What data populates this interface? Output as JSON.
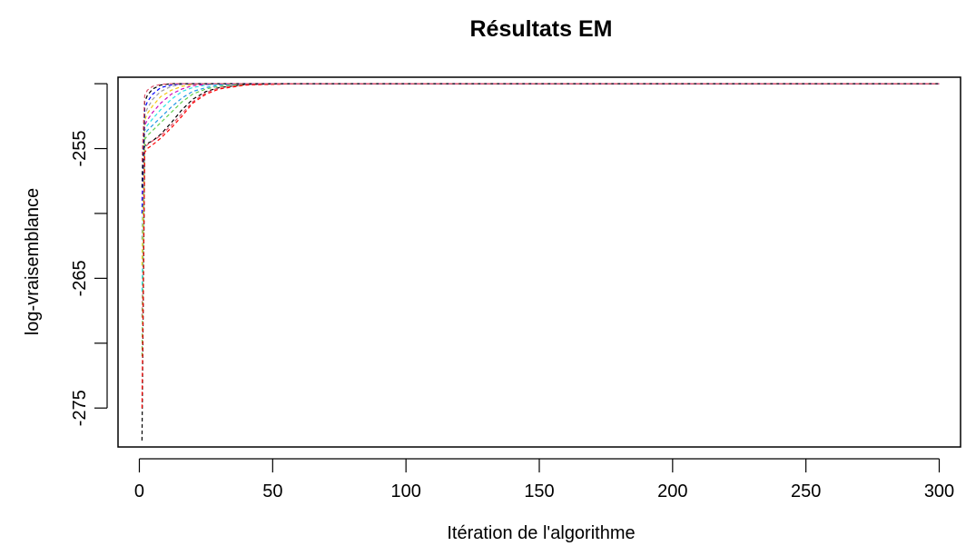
{
  "chart_data": {
    "type": "line",
    "title": "Résultats EM",
    "xlabel": "Itération de l'algorithme",
    "ylabel": "log-vraisemblance",
    "xlim": [
      -8,
      308
    ],
    "ylim": [
      -278,
      -249.5
    ],
    "xticks": [
      0,
      50,
      100,
      150,
      200,
      250,
      300
    ],
    "yticks": [
      -275,
      -265,
      -255
    ],
    "ytick_labels_shown": [
      "-255",
      "-265",
      "-275"
    ],
    "grid": false,
    "legend": "none",
    "line_style": "dashed",
    "palette": [
      "#000000",
      "#df536b",
      "#61d04f",
      "#2297e6",
      "#28e2e5",
      "#cd0bbc",
      "#f5c710",
      "#9e9e9e",
      "#0000ff",
      "#ff0000"
    ],
    "series": [
      {
        "x": [
          1,
          2,
          3,
          5,
          8,
          12,
          16,
          20,
          25,
          30,
          40,
          60,
          100,
          150,
          200,
          250,
          300
        ],
        "values": [
          -277.5,
          -254.8,
          -254.6,
          -254.4,
          -253.9,
          -253.0,
          -252.0,
          -251.2,
          -250.6,
          -250.3,
          -250.05,
          -250.0,
          -250.0,
          -250.0,
          -250.0,
          -250.0,
          -250.0
        ]
      },
      {
        "x": [
          1,
          2,
          3,
          5,
          8,
          12,
          16,
          20,
          25,
          30,
          40,
          60,
          100,
          150,
          200,
          250,
          300
        ],
        "values": [
          -268.0,
          -255.0,
          -254.7,
          -254.4,
          -254.0,
          -253.2,
          -252.3,
          -251.4,
          -250.7,
          -250.3,
          -250.05,
          -250.0,
          -250.0,
          -250.0,
          -250.0,
          -250.0,
          -250.0
        ]
      },
      {
        "x": [
          1,
          2,
          3,
          5,
          8,
          12,
          16,
          20,
          25,
          30,
          40,
          60,
          100,
          150,
          200,
          250,
          300
        ],
        "values": [
          -271.0,
          -254.3,
          -254.0,
          -253.6,
          -253.0,
          -252.2,
          -251.4,
          -250.8,
          -250.4,
          -250.2,
          -250.02,
          -250.0,
          -250.0,
          -250.0,
          -250.0,
          -250.0,
          -250.0
        ]
      },
      {
        "x": [
          1,
          2,
          3,
          5,
          8,
          12,
          16,
          20,
          25,
          30,
          40,
          60,
          100,
          150,
          200,
          250,
          300
        ],
        "values": [
          -262.0,
          -253.9,
          -253.6,
          -253.2,
          -252.6,
          -251.8,
          -251.1,
          -250.6,
          -250.3,
          -250.1,
          -250.0,
          -250.0,
          -250.0,
          -250.0,
          -250.0,
          -250.0,
          -250.0
        ]
      },
      {
        "x": [
          1,
          2,
          3,
          5,
          8,
          12,
          16,
          20,
          25,
          30,
          40,
          60,
          100,
          150,
          200,
          250,
          300
        ],
        "values": [
          -266.0,
          -253.6,
          -253.2,
          -252.7,
          -252.0,
          -251.2,
          -250.6,
          -250.3,
          -250.1,
          -250.05,
          -250.0,
          -250.0,
          -250.0,
          -250.0,
          -250.0,
          -250.0,
          -250.0
        ]
      },
      {
        "x": [
          1,
          2,
          3,
          5,
          8,
          12,
          16,
          20,
          25,
          30,
          40,
          60,
          100,
          150,
          200,
          250,
          300
        ],
        "values": [
          -259.0,
          -253.2,
          -252.8,
          -252.2,
          -251.5,
          -250.8,
          -250.4,
          -250.15,
          -250.05,
          -250.0,
          -250.0,
          -250.0,
          -250.0,
          -250.0,
          -250.0,
          -250.0,
          -250.0
        ]
      },
      {
        "x": [
          1,
          2,
          3,
          5,
          8,
          12,
          16,
          20,
          25,
          30,
          40,
          60,
          100,
          150,
          200,
          250,
          300
        ],
        "values": [
          -264.0,
          -252.8,
          -252.3,
          -251.7,
          -251.0,
          -250.5,
          -250.2,
          -250.05,
          -250.0,
          -250.0,
          -250.0,
          -250.0,
          -250.0,
          -250.0,
          -250.0,
          -250.0,
          -250.0
        ]
      },
      {
        "x": [
          1,
          2,
          3,
          5,
          8,
          12,
          16,
          20,
          25,
          30,
          40,
          60,
          100,
          150,
          200,
          250,
          300
        ],
        "values": [
          -257.0,
          -252.4,
          -251.9,
          -251.2,
          -250.6,
          -250.2,
          -250.05,
          -250.0,
          -250.0,
          -250.0,
          -250.0,
          -250.0,
          -250.0,
          -250.0,
          -250.0,
          -250.0,
          -250.0
        ]
      },
      {
        "x": [
          1,
          2,
          3,
          5,
          8,
          12,
          16,
          20,
          25,
          30,
          40,
          60,
          100,
          150,
          200,
          250,
          300
        ],
        "values": [
          -260.0,
          -251.9,
          -251.4,
          -250.8,
          -250.3,
          -250.1,
          -250.0,
          -250.0,
          -250.0,
          -250.0,
          -250.0,
          -250.0,
          -250.0,
          -250.0,
          -250.0,
          -250.0,
          -250.0
        ]
      },
      {
        "x": [
          1,
          2,
          3,
          5,
          8,
          12,
          16,
          20,
          25,
          30,
          40,
          60,
          100,
          150,
          200,
          250,
          300
        ],
        "values": [
          -275.0,
          -255.3,
          -255.0,
          -254.7,
          -254.2,
          -253.4,
          -252.5,
          -251.5,
          -250.8,
          -250.4,
          -250.1,
          -250.0,
          -250.0,
          -250.0,
          -250.0,
          -250.0,
          -250.0
        ]
      },
      {
        "x": [
          1,
          2,
          3,
          5,
          8,
          12,
          16,
          20,
          25,
          30,
          40,
          60,
          100,
          150,
          200,
          250,
          300
        ],
        "values": [
          -258.0,
          -251.4,
          -250.9,
          -250.4,
          -250.1,
          -250.0,
          -250.0,
          -250.0,
          -250.0,
          -250.0,
          -250.0,
          -250.0,
          -250.0,
          -250.0,
          -250.0,
          -250.0,
          -250.0
        ]
      },
      {
        "x": [
          1,
          2,
          3,
          5,
          8,
          12,
          16,
          20,
          25,
          30,
          40,
          60,
          100,
          150,
          200,
          250,
          300
        ],
        "values": [
          -256.0,
          -250.9,
          -250.5,
          -250.2,
          -250.05,
          -250.0,
          -250.0,
          -250.0,
          -250.0,
          -250.0,
          -250.0,
          -250.0,
          -250.0,
          -250.0,
          -250.0,
          -250.0,
          -250.0
        ]
      }
    ]
  }
}
